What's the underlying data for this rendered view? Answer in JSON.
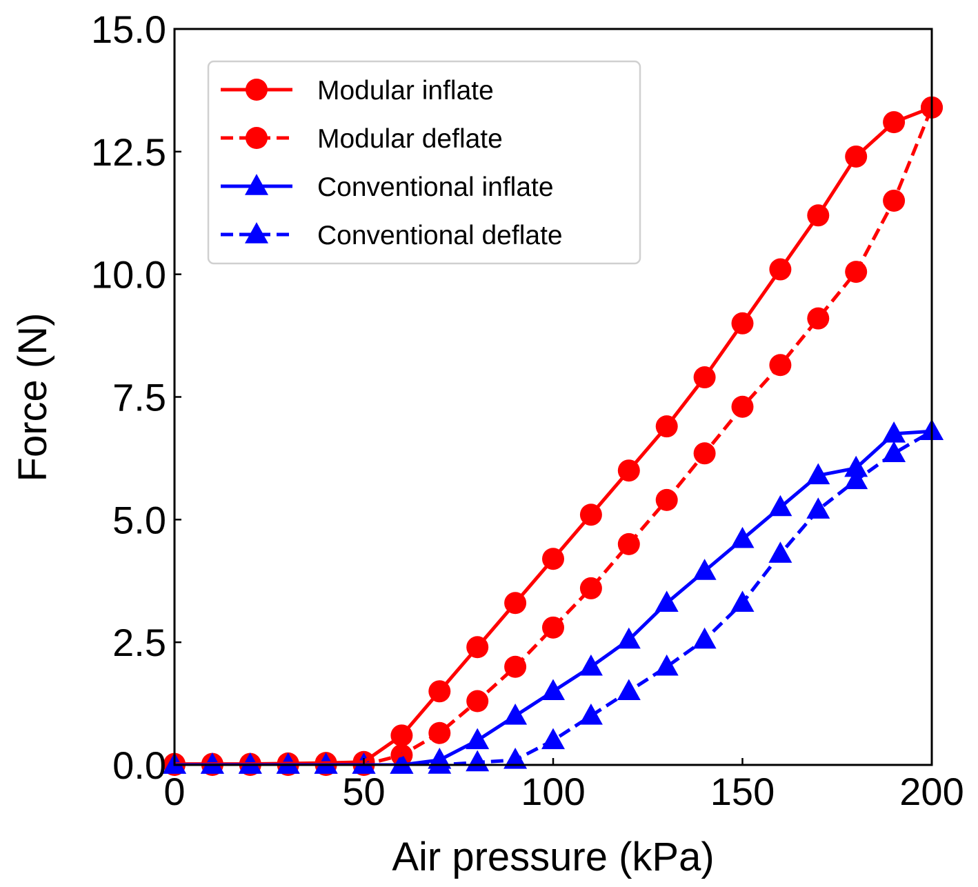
{
  "chart_data": {
    "type": "line",
    "title": "",
    "xlabel": "Air pressure (kPa)",
    "ylabel": "Force (N)",
    "xlim": [
      0,
      200
    ],
    "ylim": [
      0,
      15
    ],
    "xticks": [
      0,
      50,
      100,
      150,
      200
    ],
    "xtick_labels": [
      "0",
      "50",
      "100",
      "150",
      "200"
    ],
    "yticks": [
      0,
      2.5,
      5,
      7.5,
      10,
      12.5,
      15
    ],
    "ytick_labels": [
      "0.0",
      "2.5",
      "5.0",
      "7.5",
      "10.0",
      "12.5",
      "15.0"
    ],
    "grid": false,
    "legend_position": "top-left",
    "x": [
      0,
      10,
      20,
      30,
      40,
      50,
      60,
      70,
      80,
      90,
      100,
      110,
      120,
      130,
      140,
      150,
      160,
      170,
      180,
      190,
      200
    ],
    "series": [
      {
        "name": "Modular inflate",
        "color": "#ff0000",
        "marker": "circle",
        "dash": "solid",
        "values": [
          0.02,
          0.02,
          0.02,
          0.03,
          0.04,
          0.06,
          0.6,
          1.5,
          2.4,
          3.3,
          4.2,
          5.1,
          6.0,
          6.9,
          7.9,
          9.0,
          10.1,
          11.2,
          12.4,
          13.1,
          13.4
        ]
      },
      {
        "name": "Modular deflate",
        "color": "#ff0000",
        "marker": "circle",
        "dash": "dashed",
        "values": [
          0.0,
          0.0,
          0.0,
          0.0,
          0.0,
          0.0,
          0.2,
          0.65,
          1.3,
          2.0,
          2.8,
          3.6,
          4.5,
          5.4,
          6.35,
          7.3,
          8.15,
          9.1,
          10.05,
          11.5,
          13.4
        ]
      },
      {
        "name": "Conventional inflate",
        "color": "#0000ff",
        "marker": "triangle",
        "dash": "solid",
        "values": [
          0.0,
          0.0,
          0.0,
          0.0,
          0.0,
          0.0,
          0.0,
          0.1,
          0.5,
          1.0,
          1.5,
          2.0,
          2.55,
          3.3,
          3.95,
          4.6,
          5.25,
          5.9,
          6.05,
          6.75,
          6.8
        ]
      },
      {
        "name": "Conventional deflate",
        "color": "#0000ff",
        "marker": "triangle",
        "dash": "dashed",
        "values": [
          0.0,
          0.0,
          0.0,
          0.0,
          0.0,
          0.0,
          0.0,
          0.0,
          0.05,
          0.1,
          0.5,
          1.0,
          1.5,
          2.0,
          2.55,
          3.3,
          4.3,
          5.2,
          5.8,
          6.35,
          6.8
        ]
      }
    ]
  }
}
